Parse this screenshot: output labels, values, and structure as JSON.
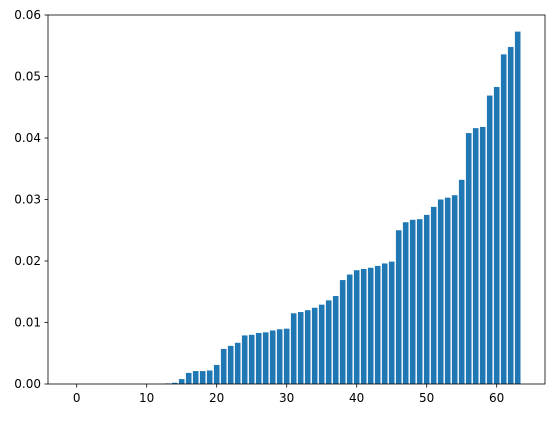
{
  "chart_data": {
    "type": "bar",
    "color": "#1f77b4",
    "bar_width": 0.8,
    "x": [
      0,
      1,
      2,
      3,
      4,
      5,
      6,
      7,
      8,
      9,
      10,
      11,
      12,
      13,
      14,
      15,
      16,
      17,
      18,
      19,
      20,
      21,
      22,
      23,
      24,
      25,
      26,
      27,
      28,
      29,
      30,
      31,
      32,
      33,
      34,
      35,
      36,
      37,
      38,
      39,
      40,
      41,
      42,
      43,
      44,
      45,
      46,
      47,
      48,
      49,
      50,
      51,
      52,
      53,
      54,
      55,
      56,
      57,
      58,
      59,
      60,
      61,
      62,
      63
    ],
    "values": [
      0,
      0,
      0,
      0,
      0,
      0,
      0,
      0,
      0,
      0,
      0,
      0,
      0,
      0.0001,
      0.0002,
      0.0008,
      0.0018,
      0.0021,
      0.0021,
      0.0022,
      0.0031,
      0.0057,
      0.0062,
      0.0067,
      0.0079,
      0.008,
      0.0083,
      0.0084,
      0.0087,
      0.0089,
      0.009,
      0.0115,
      0.0117,
      0.012,
      0.0124,
      0.0129,
      0.0136,
      0.0143,
      0.0169,
      0.0178,
      0.0185,
      0.0187,
      0.0189,
      0.0192,
      0.0196,
      0.0199,
      0.025,
      0.0263,
      0.0267,
      0.0268,
      0.0275,
      0.0288,
      0.03,
      0.0303,
      0.0307,
      0.0332,
      0.0408,
      0.0416,
      0.0418,
      0.0469,
      0.0483,
      0.0536,
      0.0548,
      0.0573
    ],
    "xlim": [
      -4.1,
      66.9
    ],
    "xticks": [
      0,
      10,
      20,
      30,
      40,
      50,
      60
    ],
    "ylim": [
      0,
      0.06
    ],
    "yticks": [
      {
        "value": 0,
        "label": "0.00"
      },
      {
        "value": 0.01,
        "label": "0.01"
      },
      {
        "value": 0.02,
        "label": "0.02"
      },
      {
        "value": 0.03,
        "label": "0.03"
      },
      {
        "value": 0.04,
        "label": "0.04"
      },
      {
        "value": 0.05,
        "label": "0.05"
      },
      {
        "value": 0.06,
        "label": "0.06"
      }
    ]
  }
}
